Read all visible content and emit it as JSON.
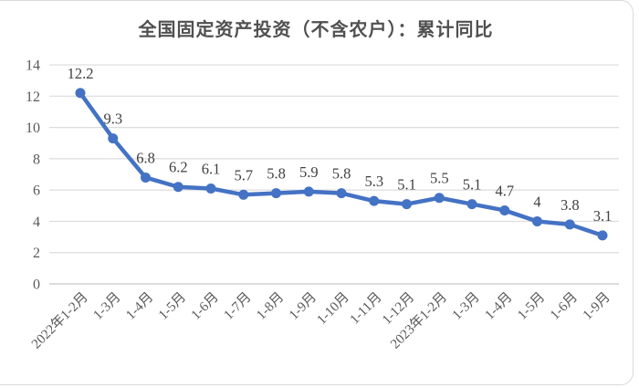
{
  "chart_data": {
    "type": "line",
    "title": "全国固定资产投资（不含农户）：累计同比",
    "categories": [
      "2022年1-2月",
      "1-3月",
      "1-4月",
      "1-5月",
      "1-6月",
      "1-7月",
      "1-8月",
      "1-9月",
      "1-10月",
      "1-11月",
      "1-12月",
      "2023年1-2月",
      "1-3月",
      "1-4月",
      "1-5月",
      "1-6月",
      "1-9月"
    ],
    "values": [
      12.2,
      9.3,
      6.8,
      6.2,
      6.1,
      5.7,
      5.8,
      5.9,
      5.8,
      5.3,
      5.1,
      5.5,
      5.1,
      4.7,
      4,
      3.8,
      3.1
    ],
    "xlabel": "",
    "ylabel": "",
    "ylim": [
      0,
      14
    ],
    "ytick_step": 2,
    "yticks": [
      0,
      2,
      4,
      6,
      8,
      10,
      12,
      14
    ],
    "grid": true,
    "legend": "none",
    "data_labels": true,
    "x_label_rotation_deg": -45,
    "colors": {
      "line": "#4472C4",
      "marker": "#4472C4",
      "grid": "#DCDCDC",
      "axis": "#C6C6C6",
      "title_text": "#505050",
      "data_label_text": "#404040",
      "tick_text": "#595959",
      "frame_border": "#D9D9D9",
      "background": "#FFFFFF"
    }
  }
}
